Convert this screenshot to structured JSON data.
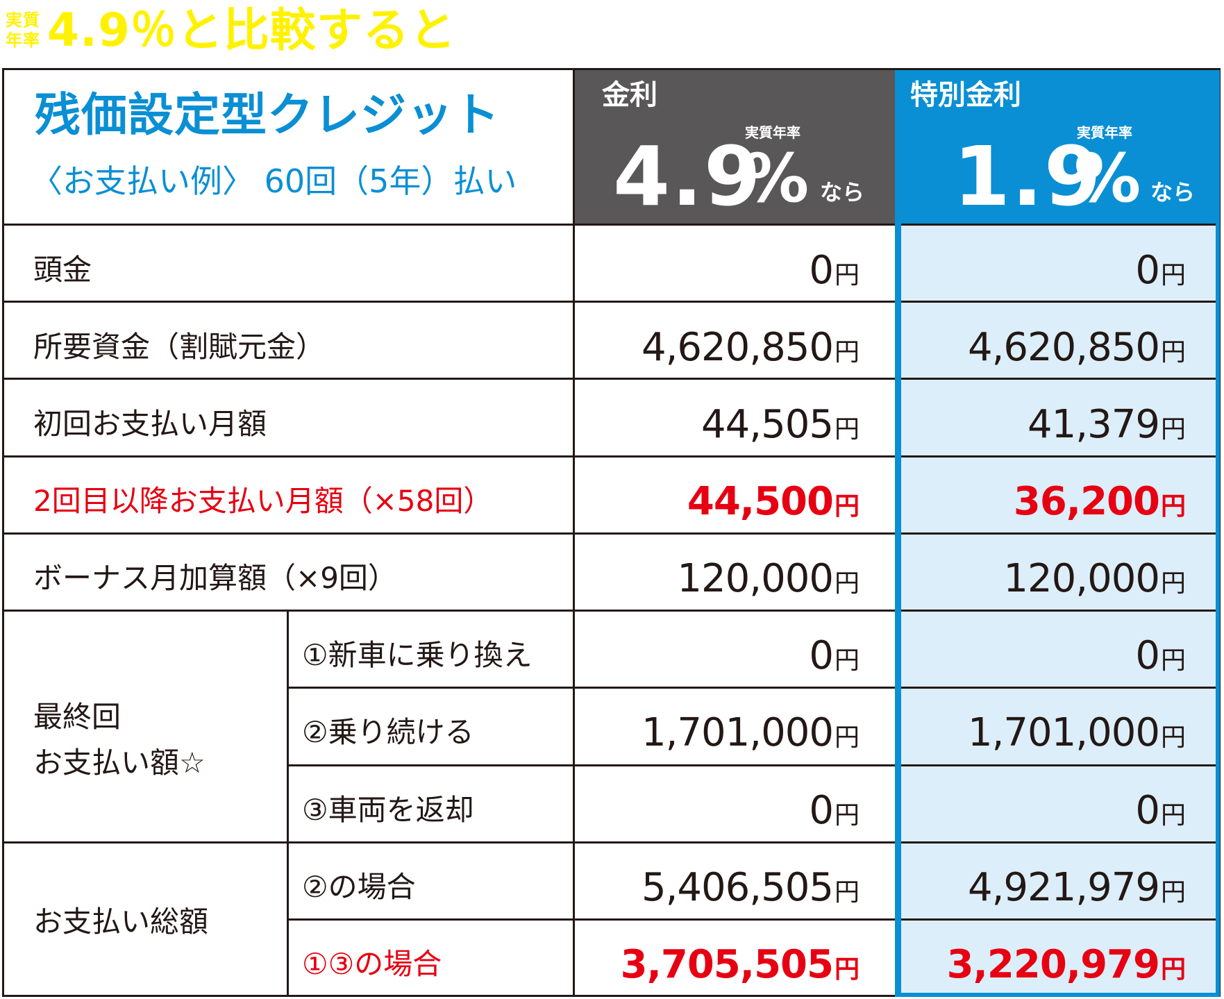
{
  "headline": {
    "small_1": "実質",
    "small_2": "年率",
    "main": "4.9％と比較すると"
  },
  "header": {
    "title": "残価設定型クレジット",
    "subtitle": "〈お支払い例〉 60回（5年）払い",
    "col_standard": {
      "label": "金利",
      "rate": "4.9",
      "percent": "%",
      "jisshitsu": "実質年率",
      "nara": "なら"
    },
    "col_special": {
      "label": "特別金利",
      "rate": "1.9",
      "percent": "%",
      "jisshitsu": "実質年率",
      "nara": "なら"
    }
  },
  "yen": "円",
  "rows": [
    {
      "label": "頭金",
      "standard": "0",
      "special": "0"
    },
    {
      "label": "所要資金（割賦元金）",
      "standard": "4,620,850",
      "special": "4,620,850"
    },
    {
      "label": "初回お支払い月額",
      "standard": "44,505",
      "special": "41,379"
    },
    {
      "label": "2回目以降お支払い月額（×58回）",
      "standard": "44,500",
      "special": "36,200"
    },
    {
      "label": "ボーナス月加算額（×9回）",
      "standard": "120,000",
      "special": "120,000"
    }
  ],
  "final": {
    "label_1": "最終回",
    "label_2": "お支払い額☆",
    "options": [
      {
        "label": "①新車に乗り換え",
        "standard": "0",
        "special": "0"
      },
      {
        "label": "②乗り続ける",
        "standard": "1,701,000",
        "special": "1,701,000"
      },
      {
        "label": "③車両を返却",
        "standard": "0",
        "special": "0"
      }
    ]
  },
  "total": {
    "label": "お支払い総額",
    "options": [
      {
        "label": "②の場合",
        "standard": "5,406,505",
        "special": "4,921,979"
      },
      {
        "label": "①③の場合",
        "standard": "3,705,505",
        "special": "3,220,979"
      }
    ]
  },
  "colors": {
    "brand_blue": "#0a8fd4",
    "light_blue": "#dceef9",
    "dark_gray": "#595757",
    "red": "#e60012",
    "headline_yellow": "#fff200"
  }
}
